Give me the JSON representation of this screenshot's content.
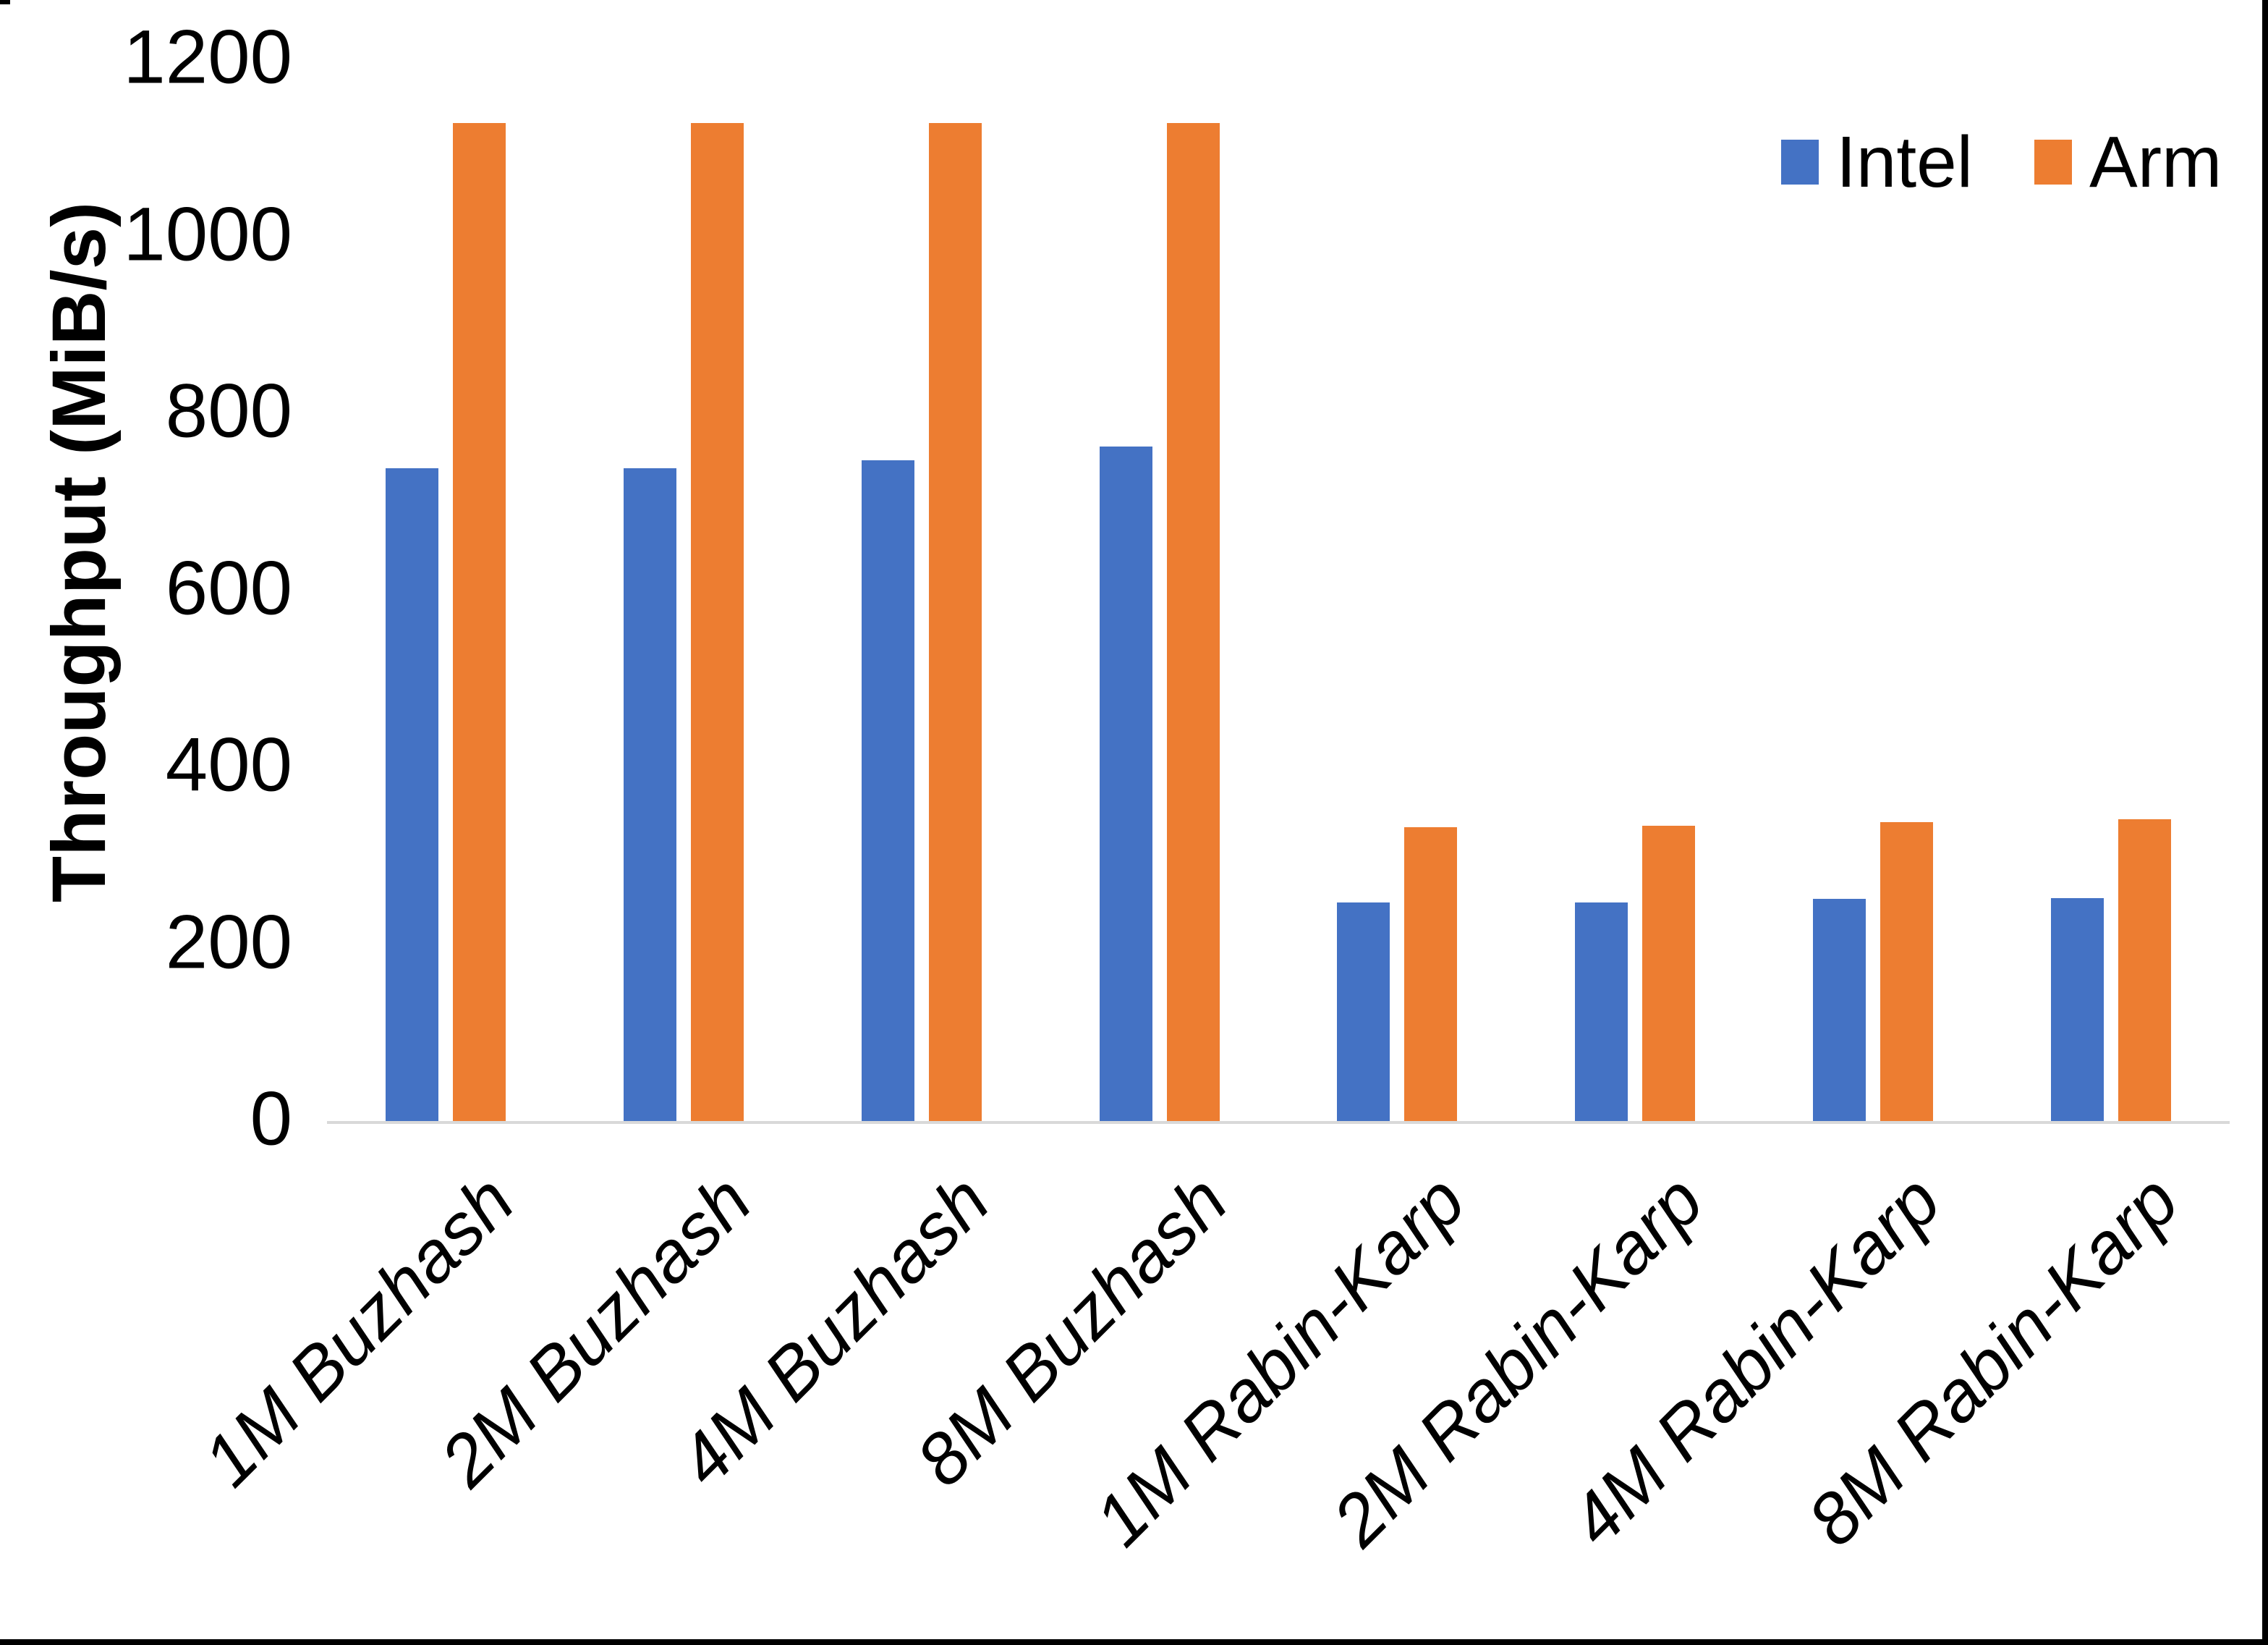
{
  "page": {
    "background": "#FFFFFF",
    "frame_color": "#000000"
  },
  "chart_data": {
    "type": "bar",
    "title": "",
    "ylabel": "Throughput (MiB/s)",
    "xlabel": "",
    "categories": [
      "1M Buzhash",
      "2M Buzhash",
      "4M Buzhash",
      "8M Buzhash",
      "1M Rabin-Karp",
      "2M Rabin-Karp",
      "4M Rabin-Karp",
      "8M Rabin-Karp"
    ],
    "series": [
      {
        "name": "Intel",
        "color": "#4472C4",
        "values": [
          738,
          738,
          747,
          762,
          247,
          247,
          251,
          252
        ]
      },
      {
        "name": "Arm",
        "color": "#ED7D31",
        "values": [
          1128,
          1128,
          1128,
          1128,
          332,
          334,
          338,
          341
        ]
      }
    ],
    "y_ticks": [
      0,
      200,
      400,
      600,
      800,
      1000,
      1200
    ],
    "ylim": [
      0,
      1200
    ],
    "grid": false,
    "axis_line_color": "#D9D9D9",
    "legend_position": "top-right",
    "x_label_rotation_deg": -45
  }
}
